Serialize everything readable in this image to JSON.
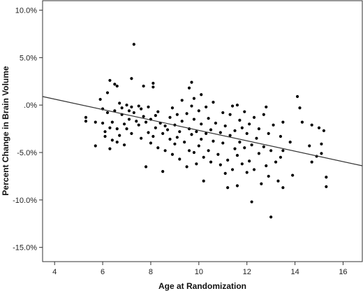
{
  "chart_data": {
    "type": "scatter",
    "title": "",
    "xlabel": "Age at Randomization",
    "ylabel": "Percent Change in Brain Volume",
    "xlim": [
      3.5,
      16.8
    ],
    "ylim": [
      -16.5,
      11.0
    ],
    "x_ticks": [
      4,
      6,
      8,
      10,
      12,
      14,
      16
    ],
    "x_tick_labels": [
      "4",
      "6",
      "8",
      "10",
      "12",
      "14",
      "16"
    ],
    "y_ticks": [
      10,
      5,
      0,
      -5,
      -10,
      -15
    ],
    "y_tick_labels": [
      "10.0%",
      "5.0%",
      ".0%",
      "-5.0%",
      "-10.0%",
      "-15.0%"
    ],
    "grid": false,
    "legend": "none",
    "fit_line": {
      "x": [
        3.5,
        16.8
      ],
      "y": [
        0.9,
        -6.4
      ]
    },
    "colors": {
      "points": "#000000",
      "line": "#333333",
      "frame": "#333333"
    },
    "points": [
      [
        5.3,
        -1.3
      ],
      [
        5.3,
        -1.7
      ],
      [
        5.7,
        -1.8
      ],
      [
        5.7,
        -4.3
      ],
      [
        5.9,
        0.6
      ],
      [
        6.0,
        -0.4
      ],
      [
        6.0,
        -1.9
      ],
      [
        6.1,
        -2.8
      ],
      [
        6.1,
        -3.3
      ],
      [
        6.2,
        -0.8
      ],
      [
        6.2,
        1.3
      ],
      [
        6.3,
        -2.4
      ],
      [
        6.3,
        2.6
      ],
      [
        6.3,
        -4.6
      ],
      [
        6.4,
        -1.8
      ],
      [
        6.4,
        -3.7
      ],
      [
        6.5,
        2.2
      ],
      [
        6.5,
        -0.6
      ],
      [
        6.6,
        2.0
      ],
      [
        6.6,
        -2.5
      ],
      [
        6.6,
        -3.9
      ],
      [
        6.7,
        0.2
      ],
      [
        6.7,
        -3.2
      ],
      [
        6.8,
        -0.3
      ],
      [
        6.8,
        -1.0
      ],
      [
        6.9,
        -2.0
      ],
      [
        6.9,
        -4.2
      ],
      [
        7.0,
        0.0
      ],
      [
        7.0,
        -2.5
      ],
      [
        7.1,
        -0.6
      ],
      [
        7.1,
        -1.5
      ],
      [
        7.2,
        2.8
      ],
      [
        7.2,
        -0.2
      ],
      [
        7.2,
        -3.0
      ],
      [
        7.3,
        6.4
      ],
      [
        7.3,
        -0.8
      ],
      [
        7.4,
        -1.7
      ],
      [
        7.5,
        -0.1
      ],
      [
        7.5,
        -2.1
      ],
      [
        7.6,
        -0.4
      ],
      [
        7.6,
        -3.5
      ],
      [
        7.7,
        2.0
      ],
      [
        7.7,
        -1.2
      ],
      [
        7.8,
        -1.8
      ],
      [
        7.8,
        -6.5
      ],
      [
        7.9,
        -0.2
      ],
      [
        7.9,
        -2.9
      ],
      [
        8.0,
        -1.5
      ],
      [
        8.0,
        -4.0
      ],
      [
        8.1,
        2.3
      ],
      [
        8.1,
        1.9
      ],
      [
        8.1,
        -3.3
      ],
      [
        8.2,
        -1.1
      ],
      [
        8.2,
        -2.4
      ],
      [
        8.3,
        -0.7
      ],
      [
        8.3,
        -4.5
      ],
      [
        8.4,
        -1.9
      ],
      [
        8.5,
        -3.0
      ],
      [
        8.5,
        -7.0
      ],
      [
        8.6,
        -2.2
      ],
      [
        8.6,
        -4.8
      ],
      [
        8.7,
        -2.6
      ],
      [
        8.8,
        -1.3
      ],
      [
        8.8,
        -3.6
      ],
      [
        8.9,
        -0.3
      ],
      [
        8.9,
        -5.2
      ],
      [
        9.0,
        -2.1
      ],
      [
        9.0,
        -4.1
      ],
      [
        9.1,
        -1.0
      ],
      [
        9.1,
        -3.4
      ],
      [
        9.2,
        -2.8
      ],
      [
        9.2,
        -5.7
      ],
      [
        9.3,
        0.5
      ],
      [
        9.3,
        -1.7
      ],
      [
        9.4,
        -3.9
      ],
      [
        9.5,
        -0.9
      ],
      [
        9.5,
        -6.5
      ],
      [
        9.6,
        1.8
      ],
      [
        9.6,
        -2.5
      ],
      [
        9.6,
        -4.8
      ],
      [
        9.7,
        2.4
      ],
      [
        9.7,
        -0.1
      ],
      [
        9.7,
        -3.1
      ],
      [
        9.8,
        0.7
      ],
      [
        9.8,
        -1.5
      ],
      [
        9.8,
        -5.0
      ],
      [
        9.9,
        -2.8
      ],
      [
        9.9,
        -6.2
      ],
      [
        10.0,
        -0.6
      ],
      [
        10.0,
        -4.3
      ],
      [
        10.1,
        1.1
      ],
      [
        10.1,
        -2.0
      ],
      [
        10.1,
        -3.6
      ],
      [
        10.2,
        -8.0
      ],
      [
        10.2,
        -5.5
      ],
      [
        10.3,
        -0.2
      ],
      [
        10.3,
        -3.0
      ],
      [
        10.4,
        -1.4
      ],
      [
        10.4,
        -4.8
      ],
      [
        10.5,
        -2.6
      ],
      [
        10.5,
        -6.0
      ],
      [
        10.6,
        0.3
      ],
      [
        10.6,
        -3.8
      ],
      [
        10.7,
        -1.9
      ],
      [
        10.8,
        -5.2
      ],
      [
        10.9,
        -2.9
      ],
      [
        10.9,
        -6.3
      ],
      [
        11.0,
        -0.8
      ],
      [
        11.0,
        -4.0
      ],
      [
        11.1,
        -7.2
      ],
      [
        11.1,
        -2.2
      ],
      [
        11.2,
        -8.7
      ],
      [
        11.2,
        -5.8
      ],
      [
        11.3,
        -1.0
      ],
      [
        11.3,
        -3.2
      ],
      [
        11.4,
        -0.1
      ],
      [
        11.4,
        -6.8
      ],
      [
        11.5,
        -4.6
      ],
      [
        11.5,
        -2.7
      ],
      [
        11.6,
        0.0
      ],
      [
        11.6,
        -5.3
      ],
      [
        11.6,
        -8.5
      ],
      [
        11.7,
        -1.6
      ],
      [
        11.7,
        -3.9
      ],
      [
        11.8,
        -6.2
      ],
      [
        11.8,
        -2.4
      ],
      [
        11.9,
        -4.5
      ],
      [
        11.9,
        -0.7
      ],
      [
        12.0,
        -7.1
      ],
      [
        12.0,
        -3.0
      ],
      [
        12.1,
        -2.0
      ],
      [
        12.1,
        -5.9
      ],
      [
        12.2,
        -10.2
      ],
      [
        12.2,
        -4.2
      ],
      [
        12.3,
        -1.3
      ],
      [
        12.3,
        -6.8
      ],
      [
        12.4,
        -3.5
      ],
      [
        12.5,
        -2.5
      ],
      [
        12.5,
        -5.1
      ],
      [
        12.6,
        -8.3
      ],
      [
        12.7,
        -1.0
      ],
      [
        12.7,
        -4.4
      ],
      [
        12.8,
        -0.2
      ],
      [
        12.8,
        -6.4
      ],
      [
        12.9,
        -3.0
      ],
      [
        12.9,
        -7.5
      ],
      [
        13.0,
        -11.8
      ],
      [
        13.0,
        -4.8
      ],
      [
        13.1,
        -2.1
      ],
      [
        13.2,
        -6.0
      ],
      [
        13.3,
        -8.0
      ],
      [
        13.4,
        -3.3
      ],
      [
        13.4,
        -5.5
      ],
      [
        13.5,
        -1.8
      ],
      [
        13.5,
        -8.7
      ],
      [
        13.5,
        -4.8
      ],
      [
        13.8,
        -3.9
      ],
      [
        13.9,
        -7.4
      ],
      [
        14.1,
        0.9
      ],
      [
        14.2,
        -0.3
      ],
      [
        14.3,
        -1.8
      ],
      [
        14.6,
        -4.3
      ],
      [
        14.7,
        -2.1
      ],
      [
        14.7,
        -6.0
      ],
      [
        14.9,
        -5.4
      ],
      [
        15.0,
        -2.4
      ],
      [
        15.1,
        -4.1
      ],
      [
        15.1,
        -5.1
      ],
      [
        15.2,
        -2.7
      ],
      [
        15.3,
        -7.6
      ],
      [
        15.3,
        -8.6
      ]
    ]
  }
}
